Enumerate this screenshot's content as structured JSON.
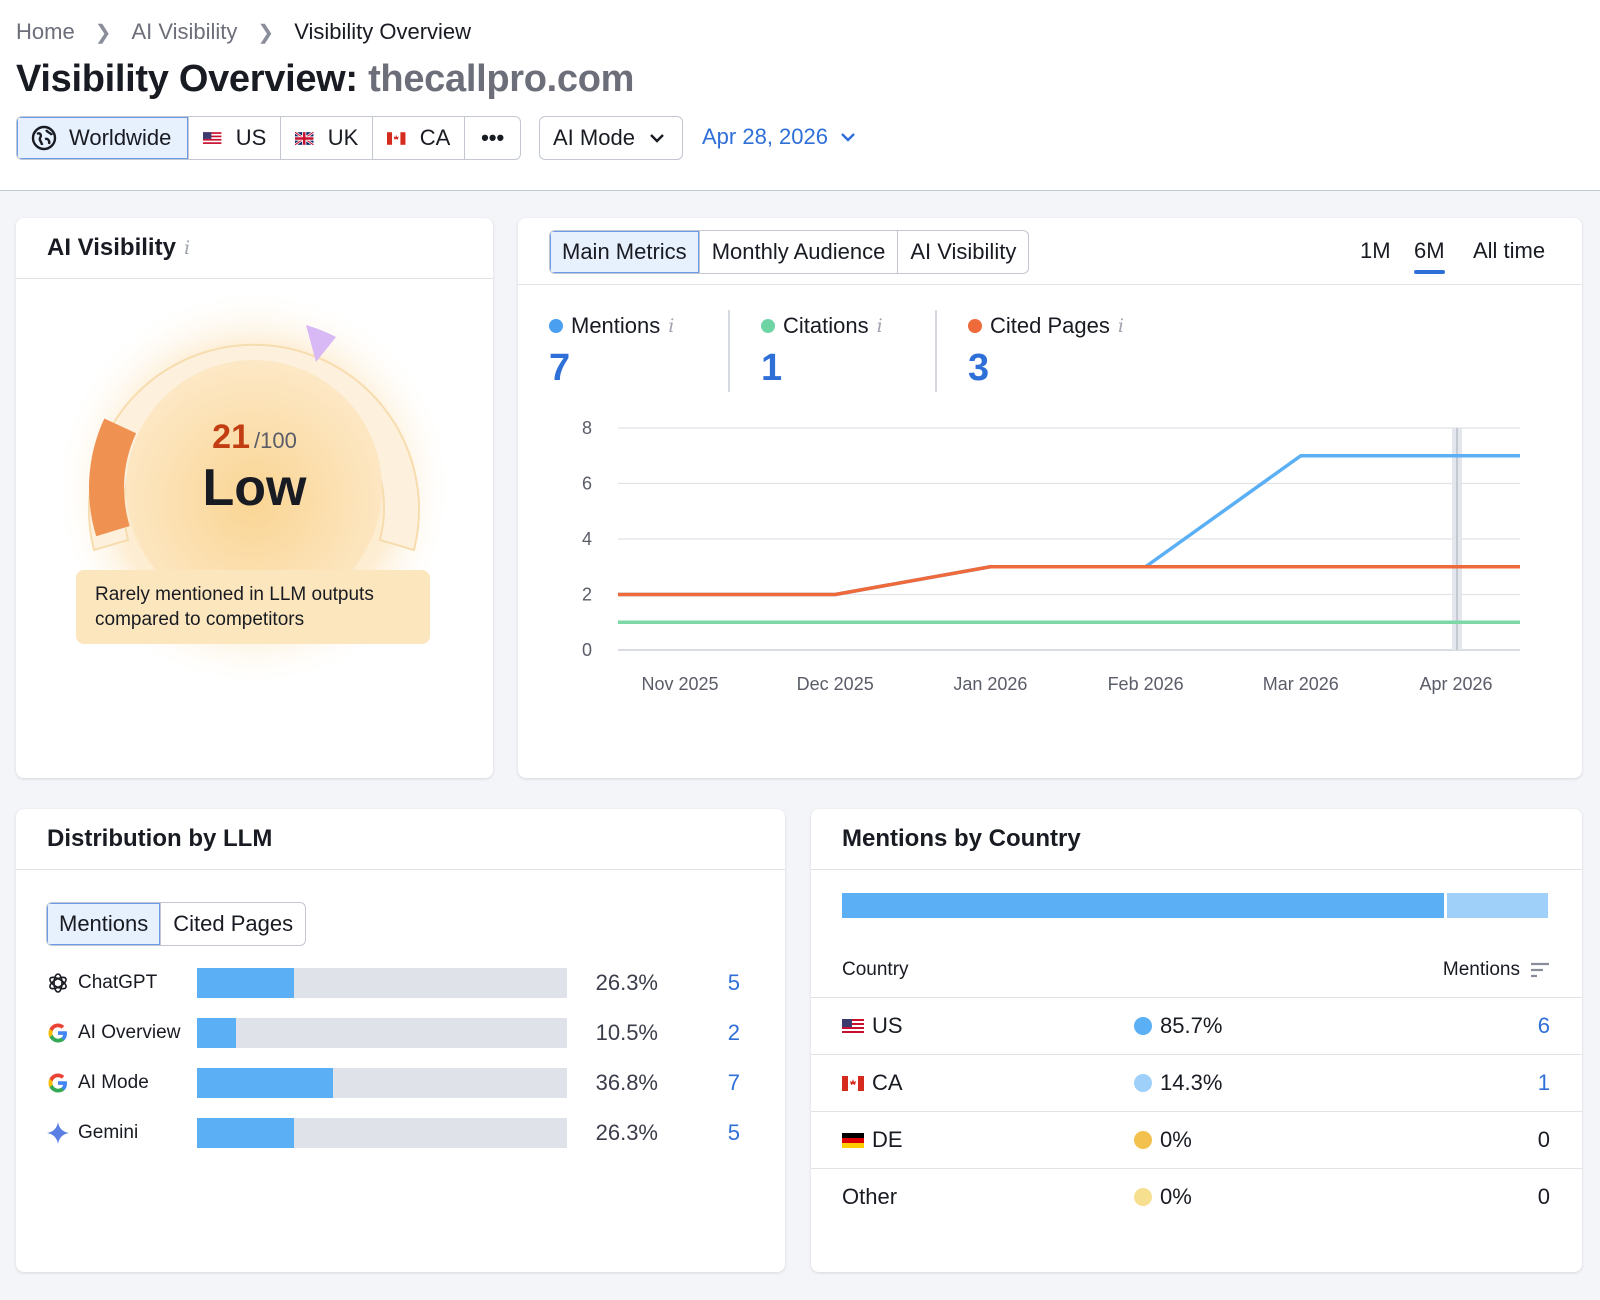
{
  "breadcrumb": [
    "Home",
    "AI Visibility",
    "Visibility Overview"
  ],
  "title": {
    "prefix": "Visibility Overview:",
    "domain": "thecallpro.com"
  },
  "regions": {
    "worldwide": "Worldwide",
    "us": "US",
    "uk": "UK",
    "ca": "CA",
    "more": "•••"
  },
  "mode_dropdown": "AI Mode",
  "date": "Apr 28, 2026",
  "ai_visibility": {
    "title": "AI Visibility",
    "score": "21",
    "score_max": "/100",
    "level": "Low",
    "score_fraction": 0.21,
    "message": "Rarely mentioned in LLM outputs compared to competitors"
  },
  "metrics_card": {
    "tabs": [
      "Main Metrics",
      "Monthly Audience",
      "AI Visibility"
    ],
    "periods": [
      "1M",
      "6M",
      "All time"
    ],
    "metrics": [
      {
        "label": "Mentions",
        "value": "7",
        "color": "#4b9ff0"
      },
      {
        "label": "Citations",
        "value": "1",
        "color": "#6fd4a4"
      },
      {
        "label": "Cited Pages",
        "value": "3",
        "color": "#ee6a3b"
      }
    ]
  },
  "chart_data": {
    "type": "line",
    "x": [
      "Nov 2025",
      "Dec 2025",
      "Jan 2026",
      "Feb 2026",
      "Mar 2026",
      "Apr 2026"
    ],
    "ylim": [
      0,
      8
    ],
    "yticks": [
      0,
      2,
      4,
      6,
      8
    ],
    "grid": true,
    "series": [
      {
        "name": "Mentions",
        "color": "#5aaff5",
        "values": [
          2,
          2,
          3,
          3,
          7,
          7
        ]
      },
      {
        "name": "Citations",
        "color": "#7cd8a6",
        "values": [
          1,
          1,
          1,
          1,
          1,
          1
        ]
      },
      {
        "name": "Cited Pages",
        "color": "#ee6a3b",
        "values": [
          2,
          2,
          3,
          3,
          3,
          3
        ]
      }
    ]
  },
  "distribution": {
    "title": "Distribution by LLM",
    "tabs": [
      "Mentions",
      "Cited Pages"
    ],
    "rows": [
      {
        "name": "ChatGPT",
        "pct": "26.3%",
        "count": "5",
        "share": 0.263
      },
      {
        "name": "AI Overview",
        "pct": "10.5%",
        "count": "2",
        "share": 0.105
      },
      {
        "name": "AI Mode",
        "pct": "36.8%",
        "count": "7",
        "share": 0.368
      },
      {
        "name": "Gemini",
        "pct": "26.3%",
        "count": "5",
        "share": 0.263
      }
    ]
  },
  "countries": {
    "title": "Mentions by Country",
    "col_country": "Country",
    "col_mentions": "Mentions",
    "stack": [
      {
        "share": 0.857,
        "color": "#5aaff5"
      },
      {
        "share": 0.143,
        "color": "#9fd0fa"
      }
    ],
    "rows": [
      {
        "name": "US",
        "pct": "85.7%",
        "count": "6",
        "color": "#5aaff5"
      },
      {
        "name": "CA",
        "pct": "14.3%",
        "count": "1",
        "color": "#9fd0fa"
      },
      {
        "name": "DE",
        "pct": "0%",
        "count": "0",
        "color": "#f2c14e"
      },
      {
        "name": "Other",
        "pct": "0%",
        "count": "0",
        "color": "#f6df8e"
      }
    ]
  }
}
